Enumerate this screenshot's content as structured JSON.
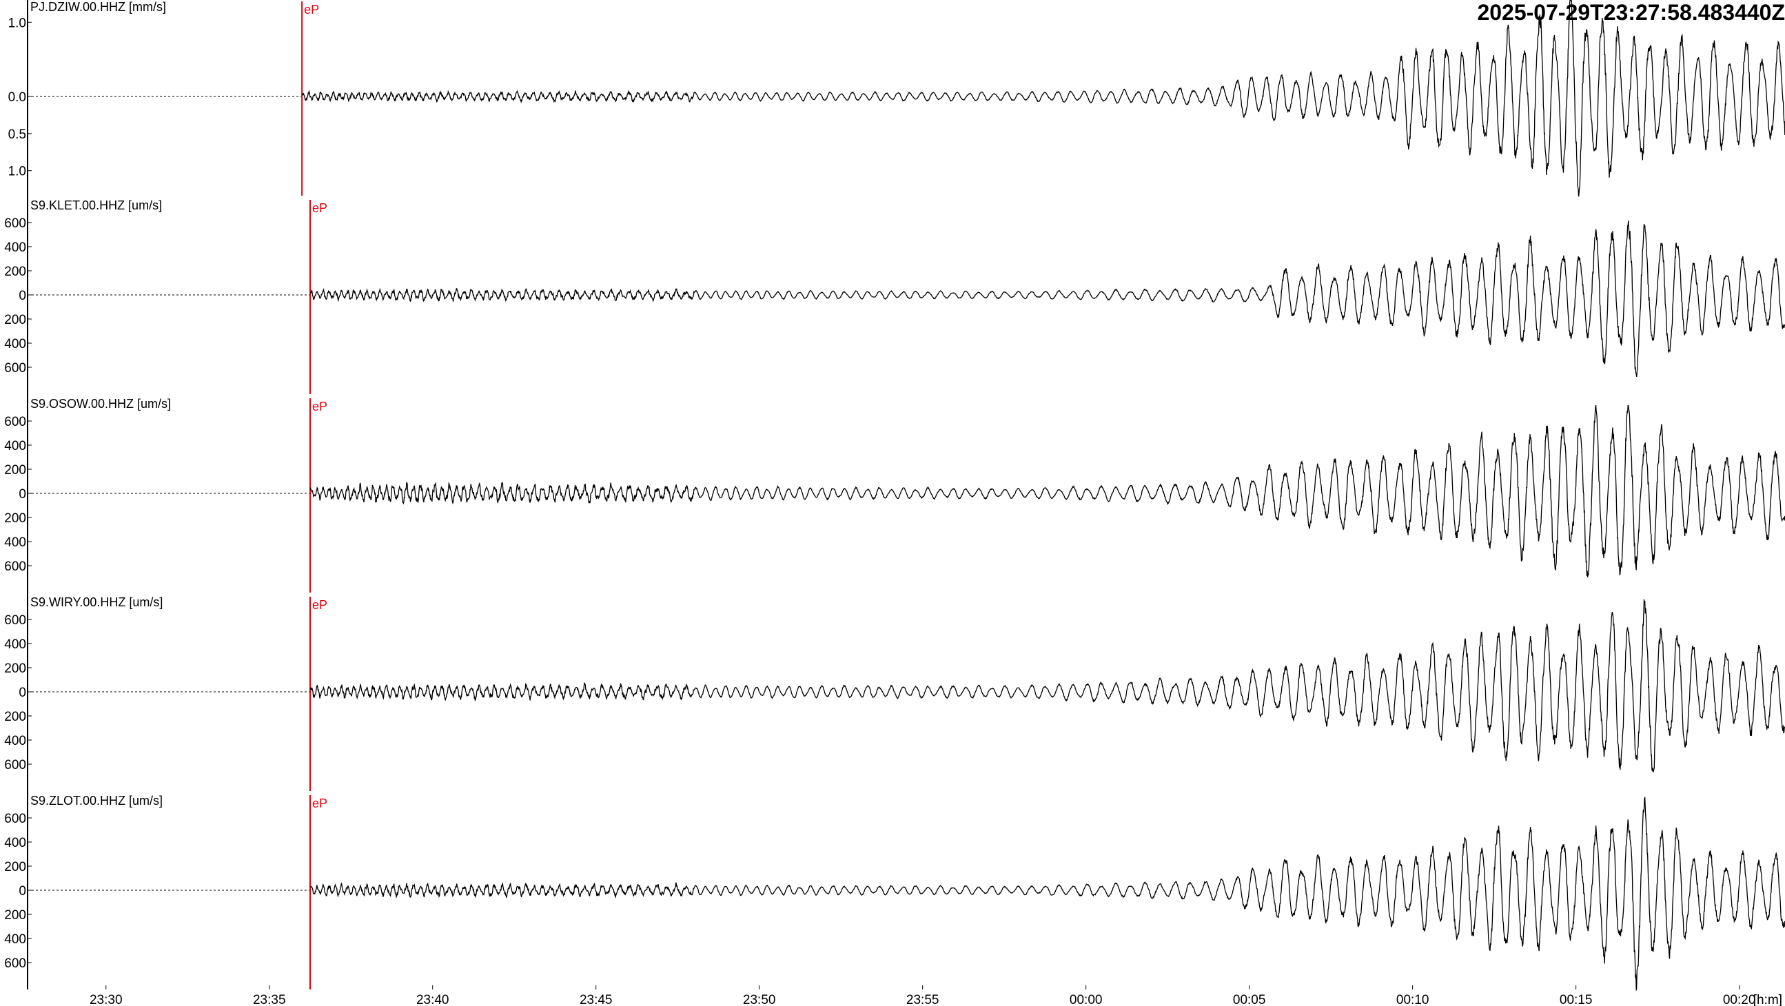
{
  "header": {
    "timestamp": "2025-07-29T23:27:58.483440Z"
  },
  "chart_data": {
    "type": "line",
    "title": "",
    "time_axis": {
      "unit_label": "[h:m]",
      "ticks": [
        "23:30",
        "23:35",
        "23:40",
        "23:45",
        "23:50",
        "23:55",
        "00:00",
        "00:05",
        "00:10",
        "00:15",
        "00:20"
      ],
      "tick_minutes": [
        2,
        7,
        12,
        17,
        22,
        27,
        32,
        37,
        42,
        47,
        52
      ],
      "range_minutes": [
        -0.4,
        53.4
      ],
      "origin": "23:28"
    },
    "pick_color": "#e8000b",
    "trace_color": "#000000",
    "traces": [
      {
        "label": "PJ.DZIW.00.HHZ [mm/s]",
        "unit": "mm/s",
        "ylim": [
          -1.3,
          1.3
        ],
        "yticks": [
          1.0,
          0.0,
          -0.5,
          -1.0
        ],
        "ytick_labels": [
          "1.0",
          "0.0",
          "0.5",
          "1.0"
        ],
        "pick": {
          "label": "eP",
          "minute": 8.0
        },
        "envelope": [
          [
            8.0,
            0.05
          ],
          [
            12.0,
            0.05
          ],
          [
            30.0,
            0.06
          ],
          [
            36.0,
            0.12
          ],
          [
            37.0,
            0.3
          ],
          [
            41.0,
            0.3
          ],
          [
            42.0,
            0.7
          ],
          [
            44.0,
            0.7
          ],
          [
            47.0,
            1.3
          ],
          [
            49.0,
            0.8
          ],
          [
            53.4,
            0.7
          ]
        ],
        "periods": [
          [
            8.0,
            0.18
          ],
          [
            20.0,
            0.3
          ],
          [
            37.0,
            0.45
          ],
          [
            53.4,
            0.5
          ]
        ]
      },
      {
        "label": "S9.KLET.00.HHZ [um/s]",
        "unit": "um/s",
        "ylim": [
          -800,
          800
        ],
        "yticks": [
          600,
          400,
          200,
          0,
          -200,
          -400,
          -600
        ],
        "ytick_labels": [
          "600",
          "400",
          "200",
          "0",
          "200",
          "400",
          "600"
        ],
        "pick": {
          "label": "eP",
          "minute": 8.25
        },
        "envelope": [
          [
            8.25,
            30
          ],
          [
            11.0,
            40
          ],
          [
            30.0,
            30
          ],
          [
            37.5,
            60
          ],
          [
            38.0,
            220
          ],
          [
            41.0,
            250
          ],
          [
            43.5,
            350
          ],
          [
            45.5,
            450
          ],
          [
            46.5,
            300
          ],
          [
            48.5,
            700
          ],
          [
            51.0,
            300
          ],
          [
            53.4,
            300
          ]
        ],
        "periods": [
          [
            8.25,
            0.18
          ],
          [
            20.0,
            0.3
          ],
          [
            38.0,
            0.5
          ],
          [
            53.4,
            0.5
          ]
        ]
      },
      {
        "label": "S9.OSOW.00.HHZ [um/s]",
        "unit": "um/s",
        "ylim": [
          -800,
          800
        ],
        "yticks": [
          600,
          400,
          200,
          0,
          -200,
          -400,
          -600
        ],
        "ytick_labels": [
          "600",
          "400",
          "200",
          "0",
          "200",
          "400",
          "600"
        ],
        "pick": {
          "label": "eP",
          "minute": 8.25
        },
        "envelope": [
          [
            8.25,
            40
          ],
          [
            11.0,
            70
          ],
          [
            30.0,
            40
          ],
          [
            36.0,
            90
          ],
          [
            38.0,
            250
          ],
          [
            42.0,
            350
          ],
          [
            45.0,
            500
          ],
          [
            48.5,
            750
          ],
          [
            51.0,
            300
          ],
          [
            53.4,
            380
          ]
        ],
        "periods": [
          [
            8.25,
            0.18
          ],
          [
            20.0,
            0.3
          ],
          [
            38.0,
            0.5
          ],
          [
            53.4,
            0.5
          ]
        ]
      },
      {
        "label": "S9.WIRY.00.HHZ [um/s]",
        "unit": "um/s",
        "ylim": [
          -800,
          800
        ],
        "yticks": [
          600,
          400,
          200,
          0,
          -200,
          -400,
          -600
        ],
        "ytick_labels": [
          "600",
          "400",
          "200",
          "0",
          "200",
          "400",
          "600"
        ],
        "pick": {
          "label": "eP",
          "minute": 8.25
        },
        "envelope": [
          [
            8.25,
            40
          ],
          [
            11.0,
            50
          ],
          [
            30.0,
            50
          ],
          [
            36.0,
            120
          ],
          [
            38.0,
            230
          ],
          [
            42.0,
            330
          ],
          [
            45.0,
            580
          ],
          [
            47.0,
            500
          ],
          [
            49.0,
            750
          ],
          [
            51.0,
            320
          ],
          [
            53.4,
            380
          ]
        ],
        "periods": [
          [
            8.25,
            0.18
          ],
          [
            20.0,
            0.3
          ],
          [
            38.0,
            0.5
          ],
          [
            53.4,
            0.5
          ]
        ]
      },
      {
        "label": "S9.ZLOT.00.HHZ [um/s]",
        "unit": "um/s",
        "ylim": [
          -800,
          800
        ],
        "yticks": [
          600,
          400,
          200,
          0,
          -200,
          -400,
          -600
        ],
        "ytick_labels": [
          "600",
          "400",
          "200",
          "0",
          "200",
          "400",
          "600"
        ],
        "pick": {
          "label": "eP",
          "minute": 8.25
        },
        "envelope": [
          [
            8.25,
            35
          ],
          [
            11.0,
            45
          ],
          [
            30.0,
            35
          ],
          [
            36.0,
            80
          ],
          [
            38.0,
            260
          ],
          [
            42.0,
            300
          ],
          [
            45.0,
            550
          ],
          [
            47.0,
            400
          ],
          [
            49.0,
            770
          ],
          [
            51.0,
            300
          ],
          [
            53.4,
            320
          ]
        ],
        "periods": [
          [
            8.25,
            0.18
          ],
          [
            20.0,
            0.3
          ],
          [
            38.0,
            0.5
          ],
          [
            53.4,
            0.5
          ]
        ]
      }
    ]
  }
}
